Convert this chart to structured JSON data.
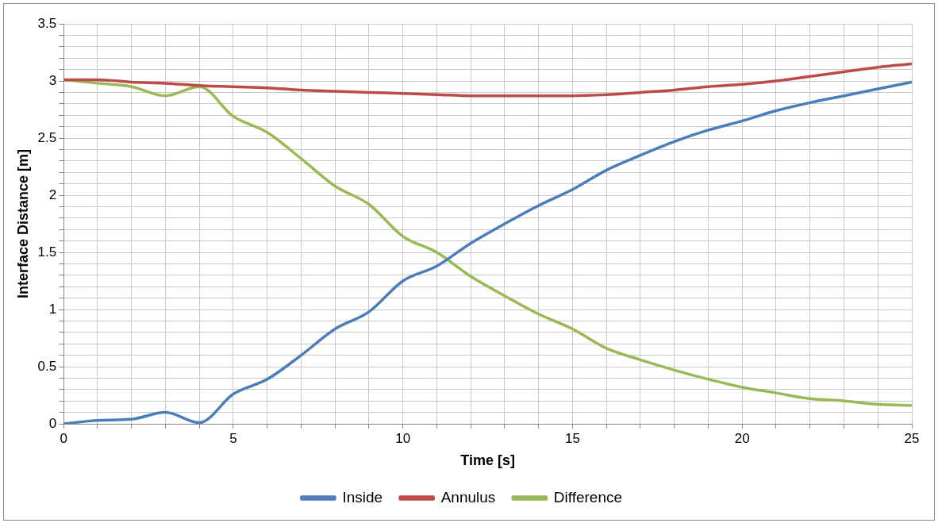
{
  "chart_data": {
    "type": "line",
    "xlabel": "Time [s]",
    "ylabel": "Interface Distance [m]",
    "x": [
      0,
      1,
      2,
      3,
      4,
      5,
      6,
      7,
      8,
      9,
      10,
      11,
      12,
      13,
      14,
      15,
      16,
      17,
      18,
      19,
      20,
      21,
      22,
      23,
      24,
      25
    ],
    "series": [
      {
        "name": "Inside",
        "color": "#4a7ebb",
        "values": [
          0,
          0.03,
          0.04,
          0.1,
          0.01,
          0.26,
          0.39,
          0.6,
          0.83,
          0.98,
          1.25,
          1.38,
          1.58,
          1.75,
          1.91,
          2.05,
          2.22,
          2.35,
          2.47,
          2.57,
          2.65,
          2.74,
          2.81,
          2.87,
          2.93,
          2.99
        ]
      },
      {
        "name": "Annulus",
        "color": "#be4b48",
        "values": [
          3.01,
          3.01,
          2.99,
          2.98,
          2.96,
          2.95,
          2.94,
          2.92,
          2.91,
          2.9,
          2.89,
          2.88,
          2.87,
          2.87,
          2.87,
          2.87,
          2.88,
          2.9,
          2.92,
          2.95,
          2.97,
          3.0,
          3.04,
          3.08,
          3.12,
          3.15
        ]
      },
      {
        "name": "Difference",
        "color": "#98b954",
        "values": [
          3.01,
          2.98,
          2.95,
          2.87,
          2.95,
          2.69,
          2.55,
          2.32,
          2.08,
          1.92,
          1.64,
          1.5,
          1.29,
          1.12,
          0.96,
          0.83,
          0.66,
          0.56,
          0.47,
          0.39,
          0.32,
          0.27,
          0.22,
          0.2,
          0.17,
          0.16
        ]
      }
    ],
    "xlim": [
      0,
      25
    ],
    "xticks": [
      0,
      {
        "value": 1,
        "label": null
      },
      {
        "value": 2,
        "label": null
      },
      {
        "value": 3,
        "label": null
      },
      {
        "value": 4,
        "label": null
      },
      5,
      {
        "value": 6,
        "label": null
      },
      {
        "value": 7,
        "label": null
      },
      {
        "value": 8,
        "label": null
      },
      {
        "value": 9,
        "label": null
      },
      10,
      {
        "value": 11,
        "label": null
      },
      {
        "value": 12,
        "label": null
      },
      {
        "value": 13,
        "label": null
      },
      {
        "value": 14,
        "label": null
      },
      15,
      {
        "value": 16,
        "label": null
      },
      {
        "value": 17,
        "label": null
      },
      {
        "value": 18,
        "label": null
      },
      {
        "value": 19,
        "label": null
      },
      20,
      {
        "value": 21,
        "label": null
      },
      {
        "value": 22,
        "label": null
      },
      {
        "value": 23,
        "label": null
      },
      {
        "value": 24,
        "label": null
      },
      25
    ],
    "ylim": [
      0,
      3.5
    ],
    "yticks": [
      0,
      {
        "value": 0.1,
        "label": null
      },
      {
        "value": 0.2,
        "label": null
      },
      {
        "value": 0.3,
        "label": null
      },
      {
        "value": 0.4,
        "label": null
      },
      0.5,
      {
        "value": 0.6,
        "label": null
      },
      {
        "value": 0.7,
        "label": null
      },
      {
        "value": 0.8,
        "label": null
      },
      {
        "value": 0.9,
        "label": null
      },
      1,
      {
        "value": 1.1,
        "label": null
      },
      {
        "value": 1.2,
        "label": null
      },
      {
        "value": 1.3,
        "label": null
      },
      {
        "value": 1.4,
        "label": null
      },
      1.5,
      {
        "value": 1.6,
        "label": null
      },
      {
        "value": 1.7,
        "label": null
      },
      {
        "value": 1.8,
        "label": null
      },
      {
        "value": 1.9,
        "label": null
      },
      2,
      {
        "value": 2.1,
        "label": null
      },
      {
        "value": 2.2,
        "label": null
      },
      {
        "value": 2.3,
        "label": null
      },
      {
        "value": 2.4,
        "label": null
      },
      2.5,
      {
        "value": 2.6,
        "label": null
      },
      {
        "value": 2.7,
        "label": null
      },
      {
        "value": 2.8,
        "label": null
      },
      {
        "value": 2.9,
        "label": null
      },
      3,
      {
        "value": 3.1,
        "label": null
      },
      {
        "value": 3.2,
        "label": null
      },
      {
        "value": 3.3,
        "label": null
      },
      {
        "value": 3.4,
        "label": null
      },
      3.5
    ],
    "grid": true,
    "legend": "bottom",
    "marker": "none",
    "line_style": "solid"
  }
}
